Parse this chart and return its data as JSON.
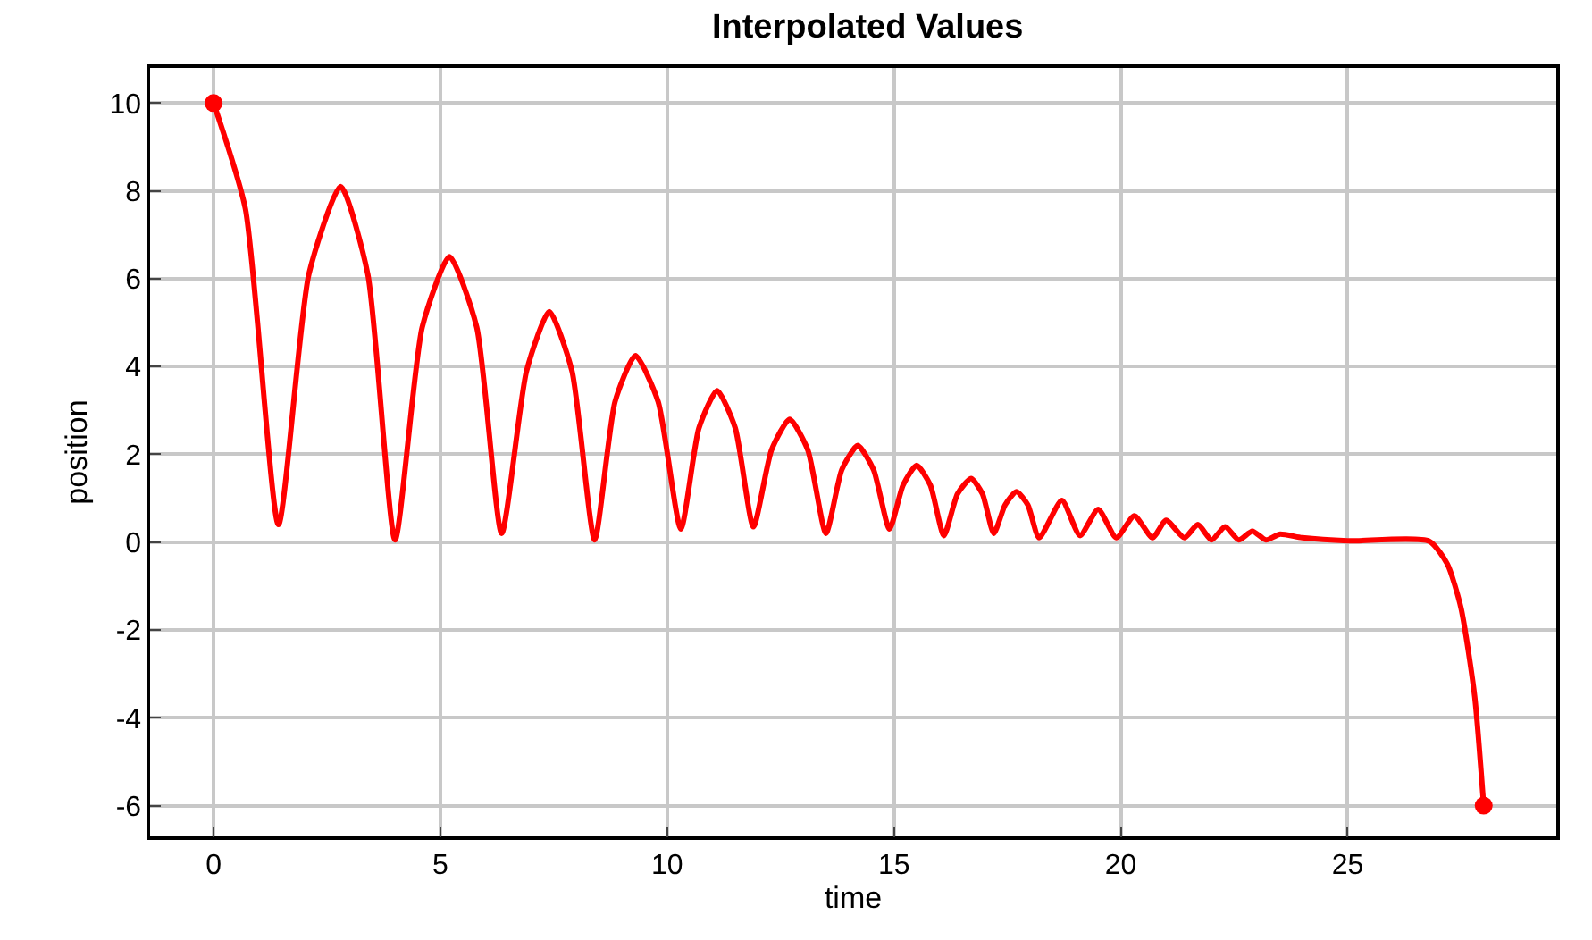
{
  "chart_data": {
    "type": "line",
    "title": "Interpolated Values",
    "xlabel": "time",
    "ylabel": "position",
    "xlim": [
      -1.4,
      29.6
    ],
    "ylim": [
      -6.7,
      10.8
    ],
    "xticks": [
      0,
      5,
      10,
      15,
      20,
      25
    ],
    "yticks": [
      -6,
      -4,
      -2,
      0,
      2,
      4,
      6,
      8,
      10
    ],
    "grid": true,
    "series": [
      {
        "color": "#ff0000",
        "marker": "none",
        "line_style": "solid",
        "x": [
          0,
          0.7,
          1.43,
          2.1,
          2.8,
          3.4,
          4.0,
          4.6,
          5.2,
          5.8,
          6.35,
          6.9,
          7.4,
          7.9,
          8.4,
          8.85,
          9.3,
          9.8,
          10.3,
          10.7,
          11.1,
          11.5,
          11.9,
          12.3,
          12.7,
          13.1,
          13.5,
          13.85,
          14.2,
          14.55,
          14.9,
          15.2,
          15.5,
          15.8,
          16.1,
          16.4,
          16.7,
          16.95,
          17.2,
          17.45,
          17.7,
          17.95,
          18.2,
          18.7,
          19.1,
          19.5,
          19.9,
          20.3,
          20.7,
          21.0,
          21.4,
          21.7,
          22.0,
          22.3,
          22.6,
          22.9,
          23.2,
          23.5,
          24,
          25,
          26.8,
          27.2,
          27.5,
          27.8,
          28.0
        ],
        "values": [
          10,
          7.6,
          0.4,
          6.1,
          8.1,
          6.1,
          0.05,
          4.9,
          6.5,
          4.9,
          0.2,
          3.9,
          5.25,
          3.9,
          0.05,
          3.2,
          4.25,
          3.2,
          0.3,
          2.6,
          3.45,
          2.6,
          0.35,
          2.1,
          2.8,
          2.1,
          0.2,
          1.65,
          2.2,
          1.65,
          0.3,
          1.3,
          1.75,
          1.3,
          0.15,
          1.1,
          1.45,
          1.1,
          0.2,
          0.85,
          1.15,
          0.85,
          0.1,
          0.95,
          0.15,
          0.75,
          0.1,
          0.6,
          0.1,
          0.5,
          0.1,
          0.4,
          0.05,
          0.35,
          0.05,
          0.25,
          0.05,
          0.18,
          0.1,
          0.03,
          0.02,
          -0.5,
          -1.5,
          -3.5,
          -6
        ]
      },
      {
        "type": "scatter",
        "color": "#ff0000",
        "marker": "circle",
        "x": [
          0,
          28.0
        ],
        "values": [
          10,
          -6
        ]
      }
    ]
  }
}
